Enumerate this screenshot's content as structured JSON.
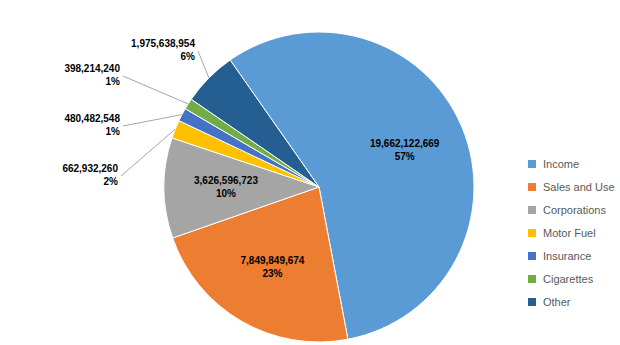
{
  "chart_data": {
    "type": "pie",
    "categories": [
      "Income",
      "Sales and Use",
      "Corporations",
      "Motor Fuel",
      "Insurance",
      "Cigarettes",
      "Other"
    ],
    "values": [
      19662122669,
      7849849674,
      3626596723,
      662932260,
      480482548,
      398214240,
      1975638954
    ],
    "value_labels": [
      "19,662,122,669",
      "7,849,849,674",
      "3,626,596,723",
      "662,932,260",
      "480,482,548",
      "398,214,240",
      "1,975,638,954"
    ],
    "percentages": [
      57,
      23,
      10,
      2,
      1,
      1,
      6
    ],
    "percentage_labels": [
      "57%",
      "23%",
      "10%",
      "2%",
      "1%",
      "1%",
      "6%"
    ],
    "colors": [
      "#5B9BD5",
      "#ED7D31",
      "#A5A5A5",
      "#FFC000",
      "#4472C4",
      "#70AD47",
      "#255E91"
    ],
    "data_labels": true,
    "legend": "right"
  }
}
